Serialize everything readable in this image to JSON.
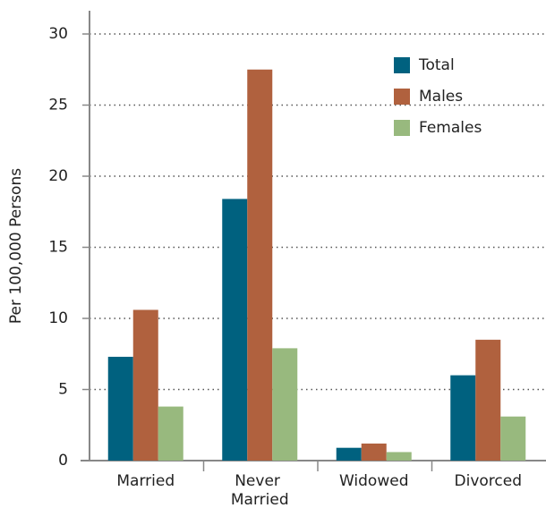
{
  "chart_data": {
    "type": "bar",
    "y_label": "Per 100,000 Persons",
    "categories": [
      "Married",
      "Never Married",
      "Widowed",
      "Divorced"
    ],
    "series": [
      {
        "name": "Total",
        "color": "#00617f",
        "values": [
          7.3,
          18.4,
          0.9,
          6.0
        ]
      },
      {
        "name": "Males",
        "color": "#b0613e",
        "values": [
          10.6,
          27.5,
          1.2,
          8.5
        ]
      },
      {
        "name": "Females",
        "color": "#98b97e",
        "values": [
          3.8,
          7.9,
          0.6,
          3.1
        ]
      }
    ],
    "ylim": [
      0,
      30
    ],
    "yticks": [
      0,
      5,
      10,
      15,
      20,
      25,
      30
    ],
    "grid": true,
    "legend": "upper right"
  }
}
